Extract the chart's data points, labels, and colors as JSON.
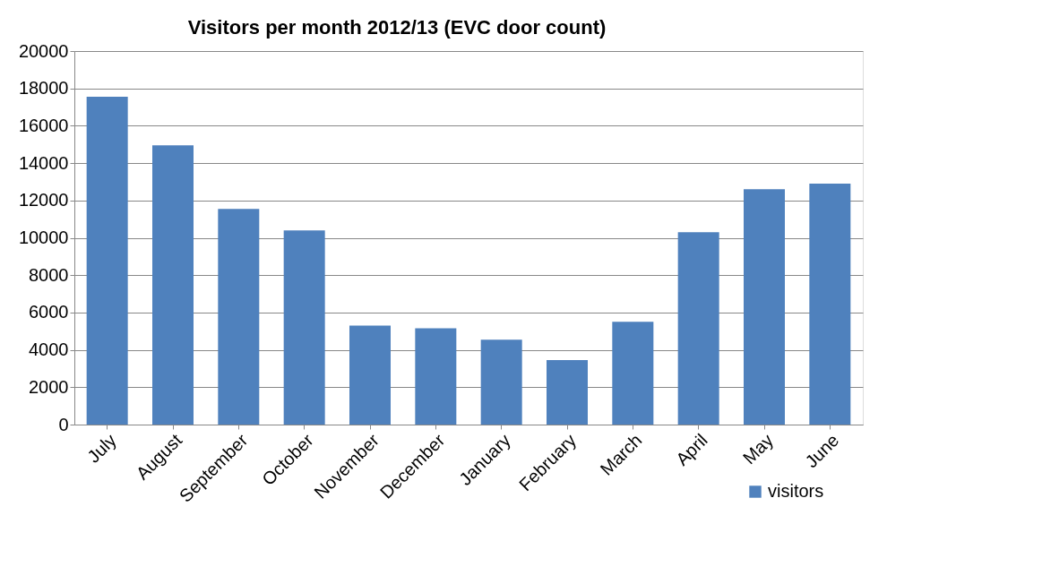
{
  "chart_data": {
    "type": "bar",
    "title": "Visitors per month 2012/13  (EVC door count)",
    "categories": [
      "July",
      "August",
      "September",
      "October",
      "November",
      "December",
      "January",
      "February",
      "March",
      "April",
      "May",
      "June"
    ],
    "series": [
      {
        "name": "visitors",
        "color": "#4f81bd",
        "values": [
          17550,
          14950,
          11550,
          10400,
          5300,
          5150,
          4550,
          3450,
          5500,
          10300,
          12600,
          12900
        ]
      }
    ],
    "ylim": [
      0,
      20000
    ],
    "yticks": [
      0,
      2000,
      4000,
      6000,
      8000,
      10000,
      12000,
      14000,
      16000,
      18000,
      20000
    ],
    "grid": "y",
    "legend": "bottom right"
  }
}
